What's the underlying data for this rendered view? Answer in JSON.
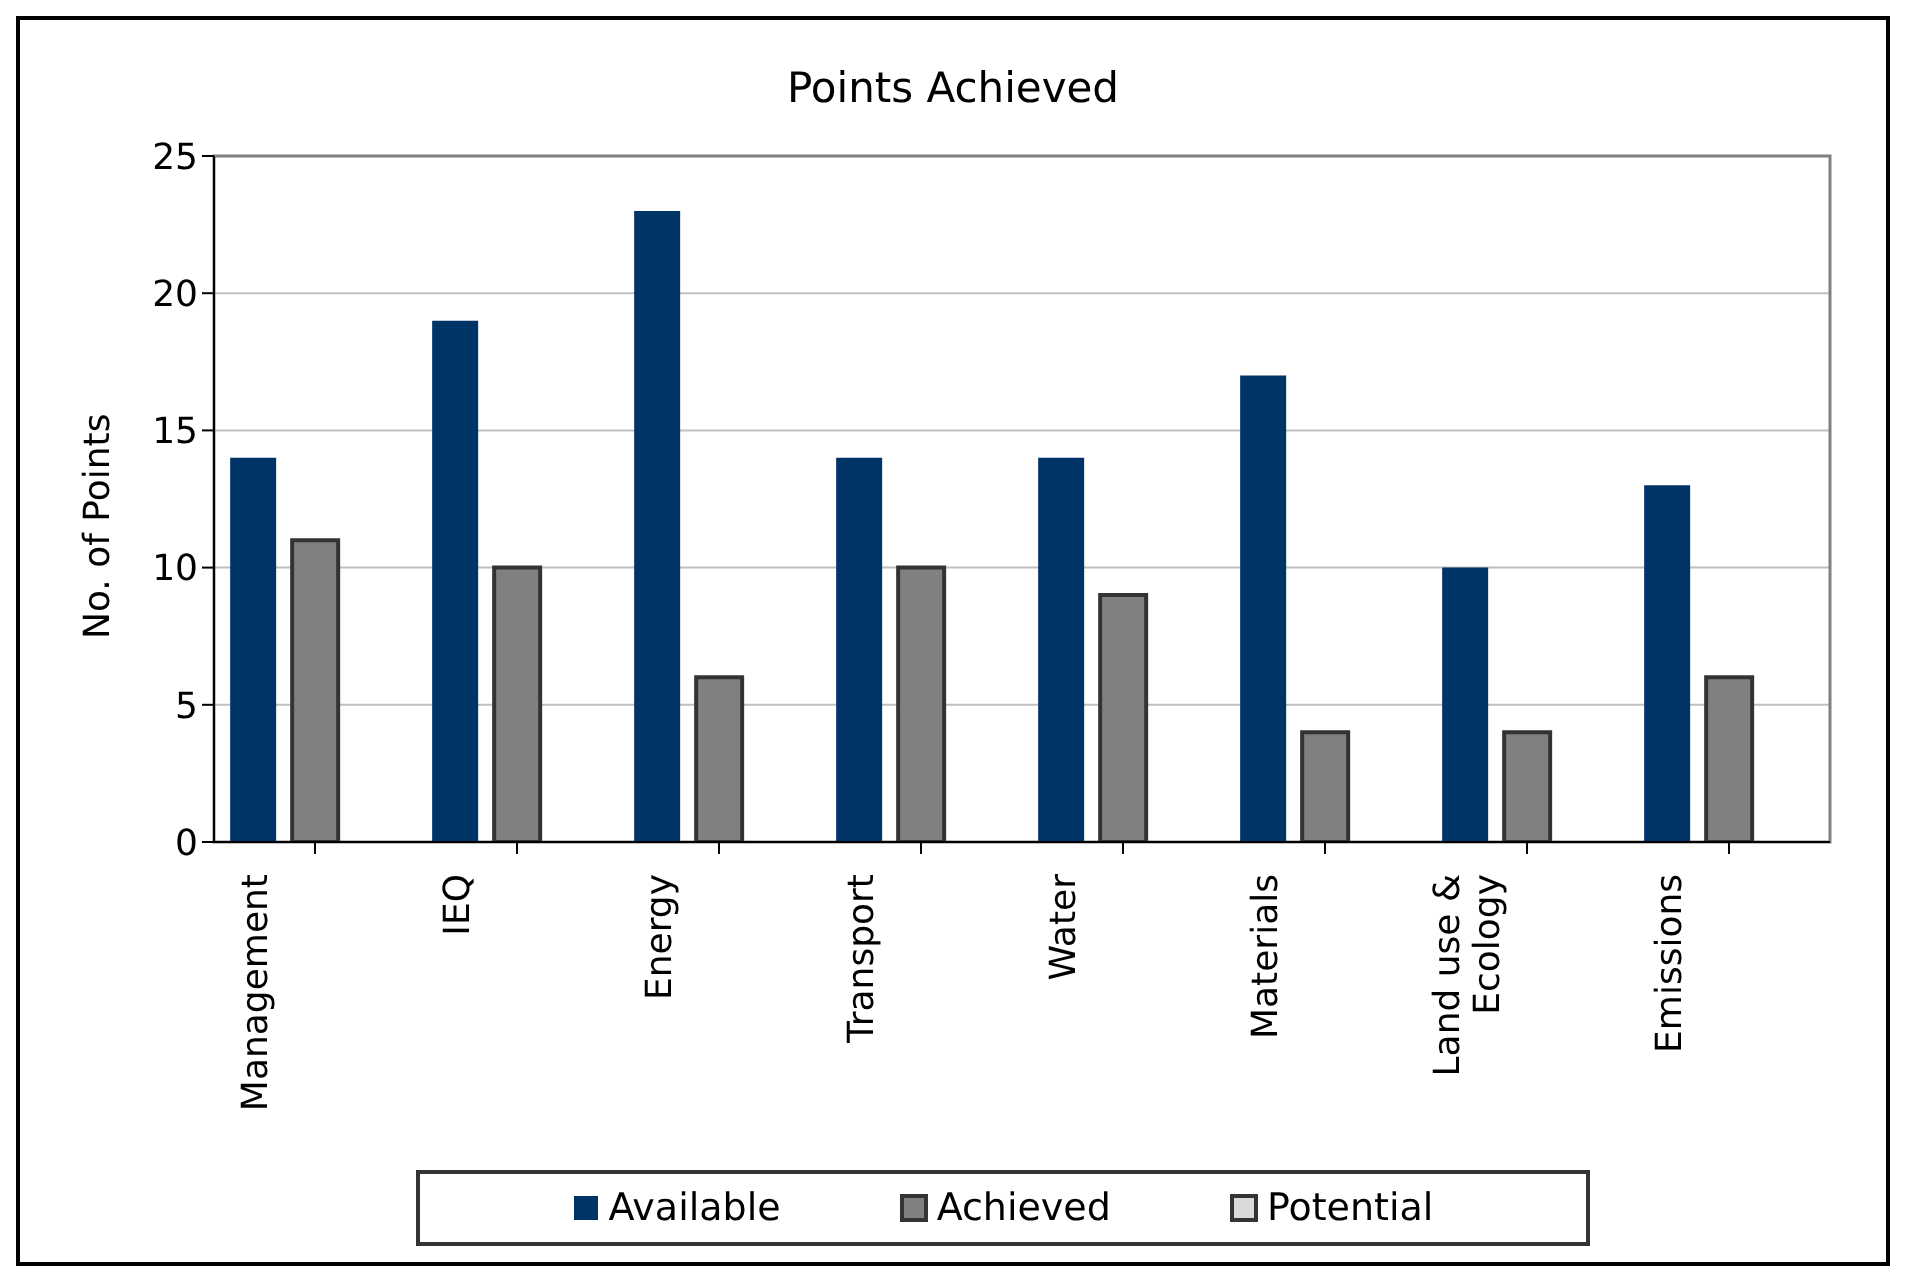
{
  "chart_data": {
    "type": "bar",
    "title": "Points Achieved",
    "ylabel": "No. of Points",
    "categories": [
      "Management",
      "IEQ",
      "Energy",
      "Transport",
      "Water",
      "Materials",
      "Land use & Ecology",
      "Emissions"
    ],
    "series": [
      {
        "name": "Available",
        "color": "#003366",
        "values": [
          14,
          19,
          23,
          14,
          14,
          17,
          10,
          13
        ]
      },
      {
        "name": "Achieved",
        "color": "#808080",
        "values": [
          11,
          10,
          6,
          10,
          9,
          4,
          4,
          6
        ]
      },
      {
        "name": "Potential",
        "color": "#d9d9d9",
        "values": [
          0,
          0,
          0,
          0,
          0,
          0,
          0,
          0
        ]
      }
    ],
    "ylim": [
      0,
      25
    ],
    "yticks": [
      0,
      5,
      10,
      15,
      20,
      25
    ],
    "grid": "y",
    "legend": "bottom"
  }
}
